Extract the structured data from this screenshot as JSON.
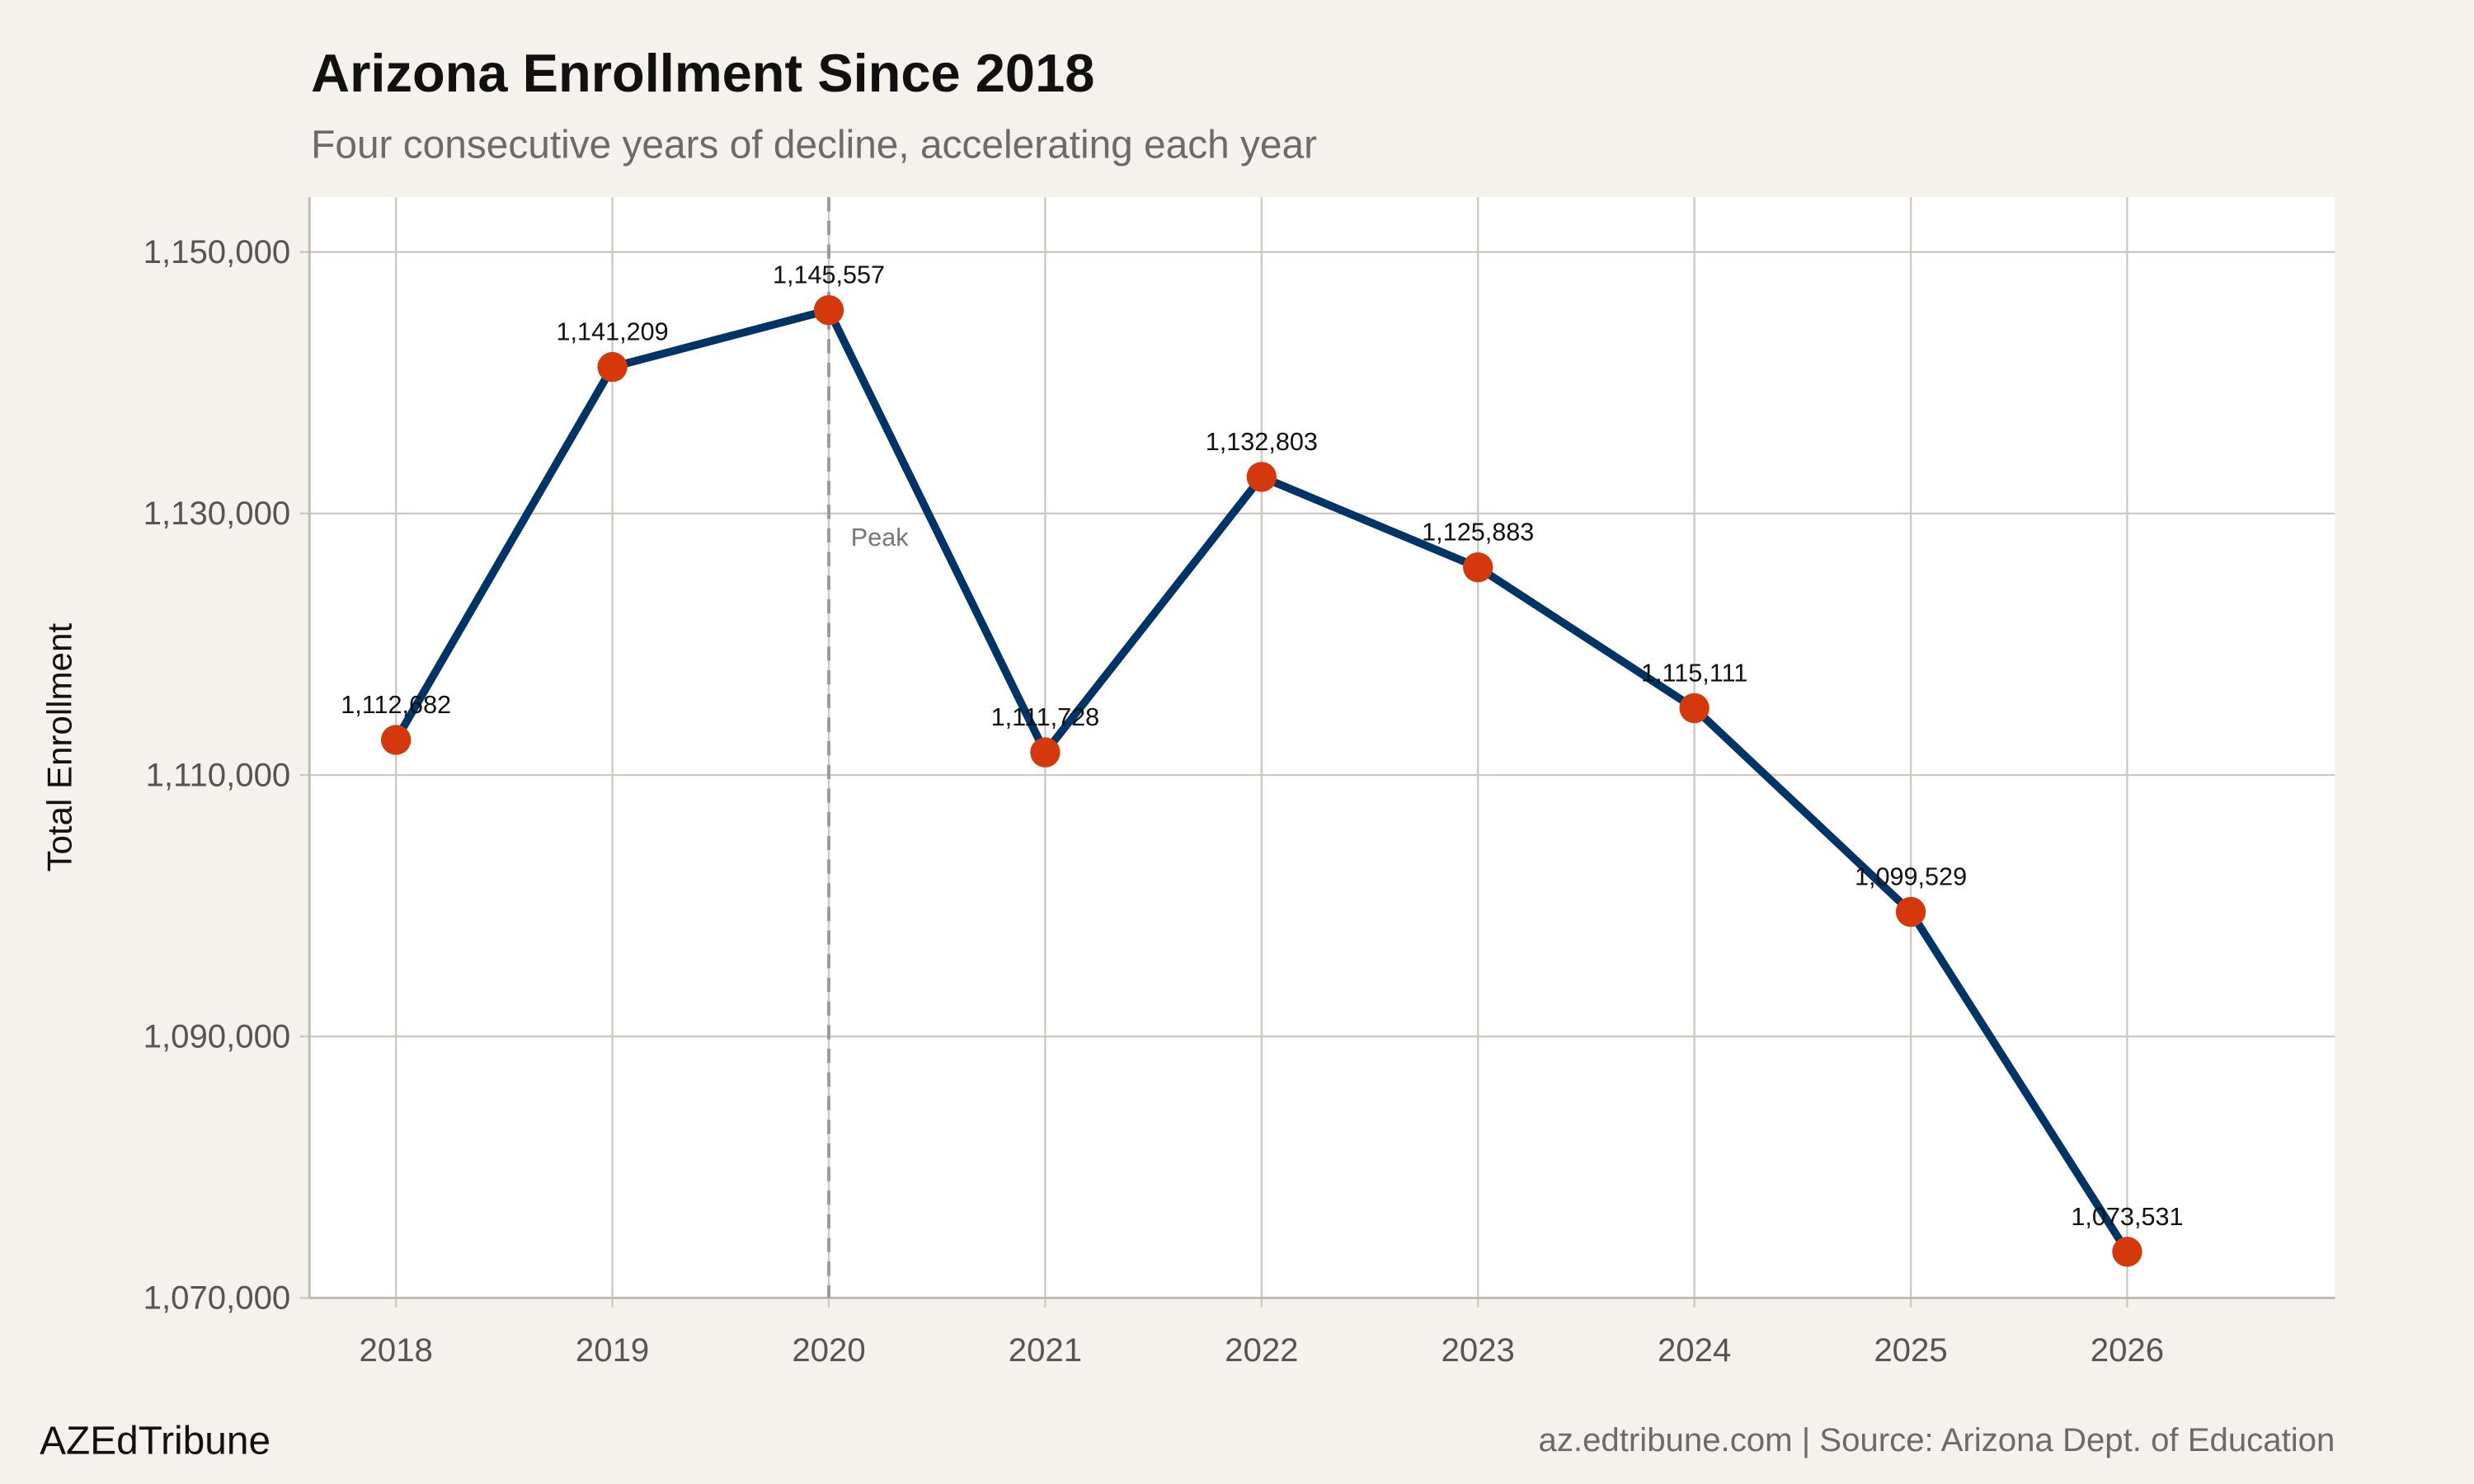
{
  "chart_data": {
    "type": "line",
    "title": "Arizona Enrollment Since 2018",
    "subtitle": "Four consecutive years of decline, accelerating each year",
    "xlabel": "",
    "ylabel": "Total Enrollment",
    "x": [
      2018,
      2019,
      2020,
      2021,
      2022,
      2023,
      2024,
      2025,
      2026
    ],
    "x_tick_labels": [
      "2018",
      "2019",
      "2020",
      "2021",
      "2022",
      "2023",
      "2024",
      "2025",
      "2026"
    ],
    "values": [
      1112682,
      1141209,
      1145557,
      1111728,
      1132803,
      1125883,
      1115111,
      1099529,
      1073531
    ],
    "data_labels": [
      "1,112,682",
      "1,141,209",
      "1,145,557",
      "1,111,728",
      "1,132,803",
      "1,125,883",
      "1,115,111",
      "1,099,529",
      "1,073,531"
    ],
    "y_ticks": [
      1070000,
      1090000,
      1110000,
      1130000,
      1150000
    ],
    "y_tick_labels": [
      "1,070,000",
      "1,090,000",
      "1,110,000",
      "1,130,000",
      "1,150,000"
    ],
    "xlim": [
      2017.6,
      2026.96
    ],
    "ylim": [
      1070000,
      1154200
    ],
    "grid": true,
    "annotation": {
      "x": 2020,
      "label": "Peak",
      "style": "dashed vertical line"
    },
    "colors": {
      "line": "#003366",
      "points": "#d4380d",
      "background": "#f5f2ed",
      "panel": "#ffffff",
      "grid": "#cdc8c0",
      "peak_line": "#999999"
    }
  },
  "footer": {
    "brand": "AZEdTribune",
    "source": "az.edtribune.com | Source: Arizona Dept. of Education"
  }
}
